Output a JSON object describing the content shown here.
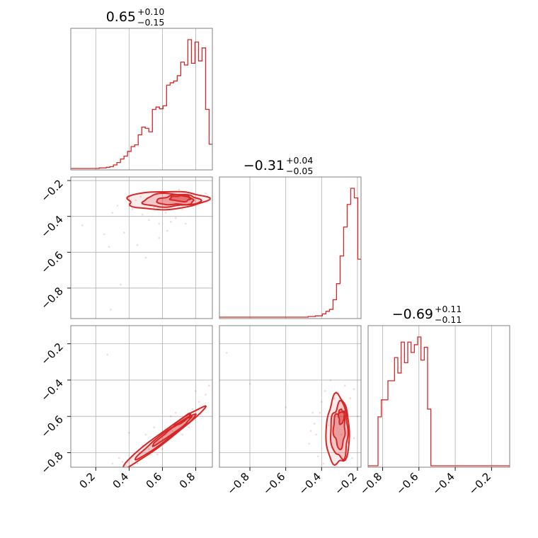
{
  "chart_data": {
    "type": "corner",
    "color": "#d62728",
    "parameters": [
      {
        "range": [
          0.05,
          0.9
        ],
        "summary": {
          "median": "0.65",
          "plus": "+0.10",
          "minus": "−0.15"
        },
        "ticks": [
          0.2,
          0.4,
          0.6,
          0.8
        ],
        "tick_labels": [
          "0.2",
          "0.4",
          "0.6",
          "0.8"
        ]
      },
      {
        "range": [
          -0.97,
          -0.18
        ],
        "summary": {
          "median": "−0.31",
          "plus": "+0.04",
          "minus": "−0.05"
        },
        "ticks": [
          -0.8,
          -0.6,
          -0.4,
          -0.2
        ],
        "tick_labels": [
          "−0.8",
          "−0.6",
          "−0.4",
          "−0.2"
        ]
      },
      {
        "range": [
          -0.88,
          -0.1
        ],
        "summary": {
          "median": "−0.69",
          "plus": "+0.11",
          "minus": "−0.11"
        },
        "ticks": [
          -0.8,
          -0.6,
          -0.4,
          -0.2
        ],
        "tick_labels": [
          "−0.8",
          "−0.6",
          "−0.4",
          "−0.2"
        ]
      }
    ],
    "histograms": [
      {
        "param": 0,
        "edges_start": 0.05,
        "bin_width": 0.0213,
        "counts": [
          0,
          0,
          0,
          0,
          0,
          0,
          0,
          0,
          1,
          1,
          2,
          3,
          6,
          10,
          16,
          21,
          29,
          37,
          40,
          57,
          70,
          68,
          62,
          100,
          104,
          101,
          106,
          141,
          145,
          148,
          157,
          180,
          175,
          218,
          178,
          214,
          182,
          204,
          100,
          41,
          18,
          6,
          0
        ]
      },
      {
        "param": 1,
        "edges_start": -0.97,
        "bin_width": 0.0198,
        "counts": [
          0,
          0,
          0,
          0,
          0,
          0,
          0,
          0,
          0,
          0,
          0,
          0,
          0,
          0,
          0,
          0,
          0,
          0,
          0,
          0,
          0,
          0,
          0,
          0,
          0,
          1,
          1,
          2,
          2,
          5,
          9,
          12,
          27,
          52,
          95,
          140,
          175,
          200,
          185,
          90,
          15,
          5,
          0
        ]
      },
      {
        "param": 2,
        "edges_start": -0.88,
        "bin_width": 0.0182,
        "counts": [
          0,
          0,
          0,
          95,
          128,
          128,
          165,
          165,
          210,
          180,
          240,
          200,
          240,
          220,
          235,
          250,
          205,
          230,
          110,
          0,
          0,
          0,
          0,
          0,
          0,
          0,
          0,
          0,
          0,
          0,
          0,
          0,
          0,
          0,
          0,
          0,
          0,
          0,
          0,
          0,
          0,
          0,
          0,
          0
        ]
      }
    ],
    "scatter_2d": [
      {
        "x_param": 0,
        "y_param": 1,
        "points": [
          [
            0.3,
            -0.38
          ],
          [
            0.42,
            -0.36
          ],
          [
            0.48,
            -0.39
          ],
          [
            0.52,
            -0.42
          ],
          [
            0.55,
            -0.35
          ],
          [
            0.58,
            -0.44
          ],
          [
            0.62,
            -0.38
          ],
          [
            0.65,
            -0.43
          ],
          [
            0.68,
            -0.41
          ],
          [
            0.72,
            -0.36
          ],
          [
            0.74,
            -0.44
          ],
          [
            0.78,
            -0.34
          ],
          [
            0.82,
            -0.3
          ],
          [
            0.86,
            -0.27
          ],
          [
            0.25,
            -0.5
          ],
          [
            0.37,
            -0.49
          ],
          [
            0.12,
            -0.45
          ],
          [
            0.45,
            -0.56
          ],
          [
            0.5,
            -0.63
          ],
          [
            0.58,
            -0.52
          ],
          [
            0.63,
            -0.48
          ],
          [
            0.28,
            -0.57
          ],
          [
            0.35,
            -0.78
          ],
          [
            0.29,
            -0.92
          ],
          [
            0.44,
            -0.31
          ],
          [
            0.6,
            -0.3
          ],
          [
            0.7,
            -0.25
          ],
          [
            0.47,
            -0.29
          ],
          [
            0.4,
            -0.33
          ],
          [
            0.33,
            -0.34
          ]
        ]
      },
      {
        "x_param": 0,
        "y_param": 2,
        "points": [
          [
            0.3,
            -0.86
          ],
          [
            0.36,
            -0.85
          ],
          [
            0.42,
            -0.82
          ],
          [
            0.46,
            -0.8
          ],
          [
            0.52,
            -0.78
          ],
          [
            0.58,
            -0.74
          ],
          [
            0.62,
            -0.7
          ],
          [
            0.66,
            -0.68
          ],
          [
            0.7,
            -0.64
          ],
          [
            0.74,
            -0.6
          ],
          [
            0.78,
            -0.56
          ],
          [
            0.82,
            -0.52
          ],
          [
            0.86,
            -0.48
          ],
          [
            0.88,
            -0.43
          ],
          [
            0.27,
            -0.26
          ],
          [
            0.4,
            -0.69
          ],
          [
            0.5,
            -0.7
          ],
          [
            0.57,
            -0.81
          ],
          [
            0.45,
            -0.86
          ],
          [
            0.65,
            -0.6
          ],
          [
            0.8,
            -0.46
          ],
          [
            0.72,
            -0.7
          ],
          [
            0.34,
            -0.83
          ],
          [
            0.6,
            -0.78
          ],
          [
            0.85,
            -0.56
          ],
          [
            0.55,
            -0.66
          ],
          [
            0.38,
            -0.87
          ],
          [
            0.48,
            -0.76
          ],
          [
            0.68,
            -0.58
          ],
          [
            0.76,
            -0.66
          ]
        ]
      },
      {
        "x_param": 1,
        "y_param": 2,
        "points": [
          [
            -0.93,
            -0.25
          ],
          [
            -0.8,
            -0.42
          ],
          [
            -0.6,
            -0.55
          ],
          [
            -0.45,
            -0.58
          ],
          [
            -0.43,
            -0.7
          ],
          [
            -0.42,
            -0.82
          ],
          [
            -0.4,
            -0.52
          ],
          [
            -0.38,
            -0.46
          ],
          [
            -0.35,
            -0.4
          ],
          [
            -0.32,
            -0.86
          ],
          [
            -0.3,
            -0.6
          ],
          [
            -0.28,
            -0.88
          ],
          [
            -0.26,
            -0.55
          ],
          [
            -0.24,
            -0.5
          ],
          [
            -0.22,
            -0.45
          ],
          [
            -0.22,
            -0.72
          ],
          [
            -0.25,
            -0.78
          ],
          [
            -0.36,
            -0.65
          ],
          [
            -0.44,
            -0.64
          ],
          [
            -0.47,
            -0.75
          ],
          [
            -0.2,
            -0.6
          ],
          [
            -0.27,
            -0.43
          ],
          [
            -0.33,
            -0.5
          ],
          [
            -0.39,
            -0.86
          ],
          [
            -0.41,
            -0.58
          ],
          [
            -0.23,
            -0.83
          ],
          [
            -0.31,
            -0.47
          ],
          [
            -0.29,
            -0.7
          ],
          [
            -0.37,
            -0.78
          ],
          [
            -0.46,
            -0.68
          ]
        ]
      }
    ],
    "contours_2d": [
      {
        "x_param": 0,
        "y_param": 1,
        "levels": [
          {
            "fill": 0.15,
            "cx": 0.62,
            "cy": -0.31,
            "a": 0.24,
            "b": 0.05,
            "angle": 0.02,
            "wobble": 0.12
          },
          {
            "fill": 0.3,
            "cx": 0.65,
            "cy": -0.31,
            "a": 0.17,
            "b": 0.036,
            "angle": 0.02,
            "wobble": 0.18
          },
          {
            "fill": 0.45,
            "cx": 0.68,
            "cy": -0.31,
            "a": 0.11,
            "b": 0.026,
            "angle": 0.02,
            "wobble": 0.22
          },
          {
            "fill": 0.6,
            "cx": 0.71,
            "cy": -0.3,
            "a": 0.06,
            "b": 0.016,
            "angle": 0.0,
            "wobble": 0.25
          }
        ]
      },
      {
        "x_param": 0,
        "y_param": 2,
        "levels": [
          {
            "fill": 0.15,
            "cx": 0.6,
            "cy": -0.72,
            "a": 0.3,
            "b": 0.028,
            "angle": 0.6,
            "wobble": 0.08
          },
          {
            "fill": 0.3,
            "cx": 0.62,
            "cy": -0.71,
            "a": 0.22,
            "b": 0.02,
            "angle": 0.6,
            "wobble": 0.12
          },
          {
            "fill": 0.45,
            "cx": 0.66,
            "cy": -0.68,
            "a": 0.14,
            "b": 0.014,
            "angle": 0.6,
            "wobble": 0.14
          },
          {
            "fill": 0.6,
            "cx": 0.72,
            "cy": -0.62,
            "a": 0.06,
            "b": 0.01,
            "angle": 0.6,
            "wobble": 0.18
          }
        ]
      },
      {
        "x_param": 1,
        "y_param": 2,
        "levels": [
          {
            "fill": 0.15,
            "cx": -0.31,
            "cy": -0.68,
            "a": 0.065,
            "b": 0.19,
            "angle": 0.0,
            "wobble": 0.12
          },
          {
            "fill": 0.3,
            "cx": -0.3,
            "cy": -0.68,
            "a": 0.048,
            "b": 0.15,
            "angle": 0.0,
            "wobble": 0.18
          },
          {
            "fill": 0.45,
            "cx": -0.3,
            "cy": -0.67,
            "a": 0.032,
            "b": 0.1,
            "angle": 0.0,
            "wobble": 0.22
          },
          {
            "fill": 0.6,
            "cx": -0.29,
            "cy": -0.6,
            "a": 0.016,
            "b": 0.04,
            "angle": 0.0,
            "wobble": 0.25
          }
        ]
      }
    ]
  }
}
